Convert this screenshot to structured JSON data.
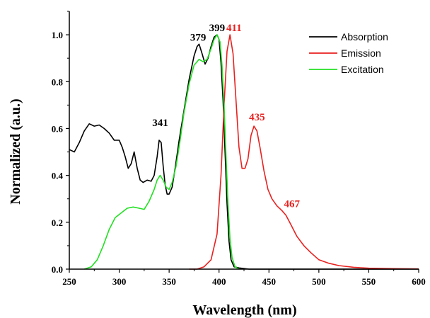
{
  "chart_data": {
    "type": "line",
    "xlabel": "Wavelength (nm)",
    "ylabel": "Normalized (a.u.)",
    "xlim": [
      250,
      600
    ],
    "ylim": [
      0,
      1.1
    ],
    "x_ticks": [
      250,
      300,
      350,
      400,
      450,
      500,
      550,
      600
    ],
    "y_ticks": [
      "0.0",
      "0.2",
      "0.4",
      "0.6",
      "0.8",
      "1.0"
    ],
    "grid": false,
    "legend_position": "top-right",
    "series": [
      {
        "name": "Absorption",
        "color": "#000000",
        "points": [
          [
            250,
            0.51
          ],
          [
            255,
            0.5
          ],
          [
            260,
            0.54
          ],
          [
            265,
            0.59
          ],
          [
            270,
            0.62
          ],
          [
            275,
            0.61
          ],
          [
            280,
            0.615
          ],
          [
            285,
            0.6
          ],
          [
            290,
            0.58
          ],
          [
            295,
            0.55
          ],
          [
            300,
            0.55
          ],
          [
            303,
            0.52
          ],
          [
            306,
            0.48
          ],
          [
            309,
            0.43
          ],
          [
            312,
            0.45
          ],
          [
            315,
            0.5
          ],
          [
            318,
            0.43
          ],
          [
            321,
            0.38
          ],
          [
            324,
            0.37
          ],
          [
            328,
            0.38
          ],
          [
            332,
            0.375
          ],
          [
            335,
            0.4
          ],
          [
            338,
            0.48
          ],
          [
            340,
            0.55
          ],
          [
            342,
            0.54
          ],
          [
            344,
            0.44
          ],
          [
            346,
            0.36
          ],
          [
            348,
            0.32
          ],
          [
            350,
            0.32
          ],
          [
            353,
            0.35
          ],
          [
            356,
            0.43
          ],
          [
            360,
            0.55
          ],
          [
            365,
            0.68
          ],
          [
            370,
            0.81
          ],
          [
            375,
            0.91
          ],
          [
            378,
            0.95
          ],
          [
            380,
            0.96
          ],
          [
            383,
            0.92
          ],
          [
            386,
            0.875
          ],
          [
            389,
            0.9
          ],
          [
            392,
            0.95
          ],
          [
            395,
            0.99
          ],
          [
            398,
            1.0
          ],
          [
            400,
            0.98
          ],
          [
            402,
            0.88
          ],
          [
            404,
            0.72
          ],
          [
            406,
            0.5
          ],
          [
            408,
            0.28
          ],
          [
            410,
            0.12
          ],
          [
            412,
            0.04
          ],
          [
            415,
            0.01
          ],
          [
            420,
            0.005
          ],
          [
            430,
            0.0
          ],
          [
            600,
            0.0
          ]
        ]
      },
      {
        "name": "Emission",
        "color": "#e8211f",
        "points": [
          [
            370,
            0.0
          ],
          [
            378,
            0.0
          ],
          [
            385,
            0.01
          ],
          [
            392,
            0.04
          ],
          [
            398,
            0.15
          ],
          [
            402,
            0.4
          ],
          [
            405,
            0.7
          ],
          [
            408,
            0.93
          ],
          [
            411,
            1.0
          ],
          [
            414,
            0.92
          ],
          [
            417,
            0.72
          ],
          [
            420,
            0.52
          ],
          [
            423,
            0.43
          ],
          [
            426,
            0.43
          ],
          [
            429,
            0.47
          ],
          [
            432,
            0.57
          ],
          [
            435,
            0.61
          ],
          [
            438,
            0.59
          ],
          [
            441,
            0.52
          ],
          [
            445,
            0.42
          ],
          [
            449,
            0.34
          ],
          [
            453,
            0.3
          ],
          [
            458,
            0.27
          ],
          [
            463,
            0.25
          ],
          [
            467,
            0.23
          ],
          [
            472,
            0.19
          ],
          [
            478,
            0.14
          ],
          [
            485,
            0.1
          ],
          [
            492,
            0.07
          ],
          [
            500,
            0.04
          ],
          [
            510,
            0.025
          ],
          [
            520,
            0.015
          ],
          [
            535,
            0.008
          ],
          [
            550,
            0.004
          ],
          [
            575,
            0.002
          ],
          [
            600,
            0.001
          ]
        ]
      },
      {
        "name": "Excitation",
        "color": "#22e022",
        "points": [
          [
            265,
            0.0
          ],
          [
            272,
            0.01
          ],
          [
            278,
            0.04
          ],
          [
            284,
            0.1
          ],
          [
            290,
            0.17
          ],
          [
            296,
            0.22
          ],
          [
            302,
            0.24
          ],
          [
            308,
            0.26
          ],
          [
            314,
            0.265
          ],
          [
            320,
            0.26
          ],
          [
            325,
            0.255
          ],
          [
            330,
            0.29
          ],
          [
            335,
            0.34
          ],
          [
            338,
            0.38
          ],
          [
            341,
            0.4
          ],
          [
            344,
            0.38
          ],
          [
            347,
            0.35
          ],
          [
            350,
            0.34
          ],
          [
            353,
            0.37
          ],
          [
            357,
            0.44
          ],
          [
            361,
            0.55
          ],
          [
            365,
            0.67
          ],
          [
            370,
            0.79
          ],
          [
            375,
            0.87
          ],
          [
            380,
            0.895
          ],
          [
            384,
            0.885
          ],
          [
            388,
            0.895
          ],
          [
            392,
            0.94
          ],
          [
            395,
            0.98
          ],
          [
            398,
            1.0
          ],
          [
            401,
            0.97
          ],
          [
            403,
            0.87
          ],
          [
            405,
            0.7
          ],
          [
            407,
            0.48
          ],
          [
            409,
            0.28
          ],
          [
            411,
            0.13
          ],
          [
            413,
            0.05
          ],
          [
            416,
            0.01
          ],
          [
            420,
            0.0
          ]
        ]
      }
    ],
    "annotations": [
      {
        "text": "341",
        "x": 341,
        "y": 0.61,
        "color": "#000000"
      },
      {
        "text": "379",
        "x": 379,
        "y": 0.975,
        "color": "#000000"
      },
      {
        "text": "399",
        "x": 398,
        "y": 1.015,
        "color": "#000000"
      },
      {
        "text": "411",
        "x": 415,
        "y": 1.015,
        "color": "#e8211f"
      },
      {
        "text": "435",
        "x": 438,
        "y": 0.635,
        "color": "#e8211f"
      },
      {
        "text": "467",
        "x": 473,
        "y": 0.265,
        "color": "#e8211f"
      }
    ]
  }
}
